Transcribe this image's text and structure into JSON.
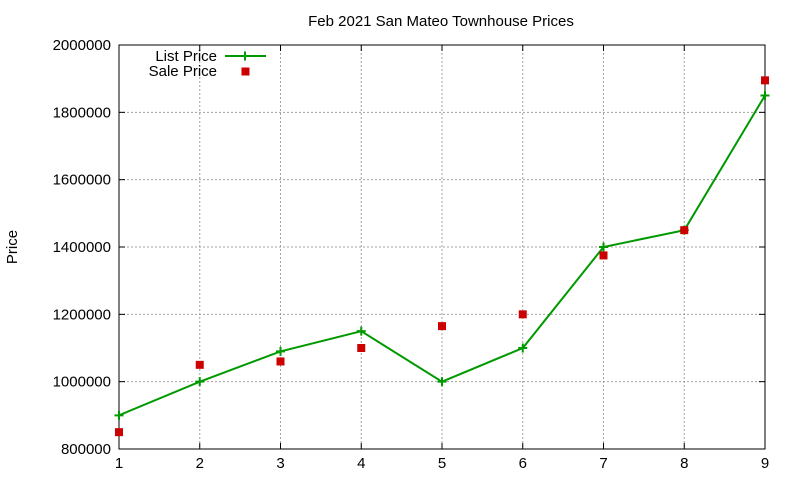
{
  "chart_data": {
    "type": "line",
    "title": "Feb 2021 San Mateo Townhouse Prices",
    "xlabel": "",
    "ylabel": "Price",
    "x": [
      1,
      2,
      3,
      4,
      5,
      6,
      7,
      8,
      9
    ],
    "xlim": [
      1,
      9
    ],
    "ylim": [
      800000,
      2000000
    ],
    "xticks": [
      1,
      2,
      3,
      4,
      5,
      6,
      7,
      8,
      9
    ],
    "yticks": [
      800000,
      1000000,
      1200000,
      1400000,
      1600000,
      1800000,
      2000000
    ],
    "xtick_labels": [
      "1",
      "2",
      "3",
      "4",
      "5",
      "6",
      "7",
      "8",
      "9"
    ],
    "ytick_labels": [
      "800000",
      "1000000",
      "1200000",
      "1400000",
      "1600000",
      "1800000",
      "2000000"
    ],
    "grid": true,
    "legend_position": "top-left",
    "series": [
      {
        "name": "List Price",
        "style": "line-with-plus-markers",
        "color": "#009900",
        "values": [
          900000,
          1000000,
          1090000,
          1150000,
          1000000,
          1100000,
          1400000,
          1450000,
          1850000
        ]
      },
      {
        "name": "Sale Price",
        "style": "square-markers",
        "color": "#cc0000",
        "values": [
          850000,
          1050000,
          1060000,
          1100000,
          1165000,
          1200000,
          1375000,
          1450000,
          1895000
        ]
      }
    ]
  }
}
